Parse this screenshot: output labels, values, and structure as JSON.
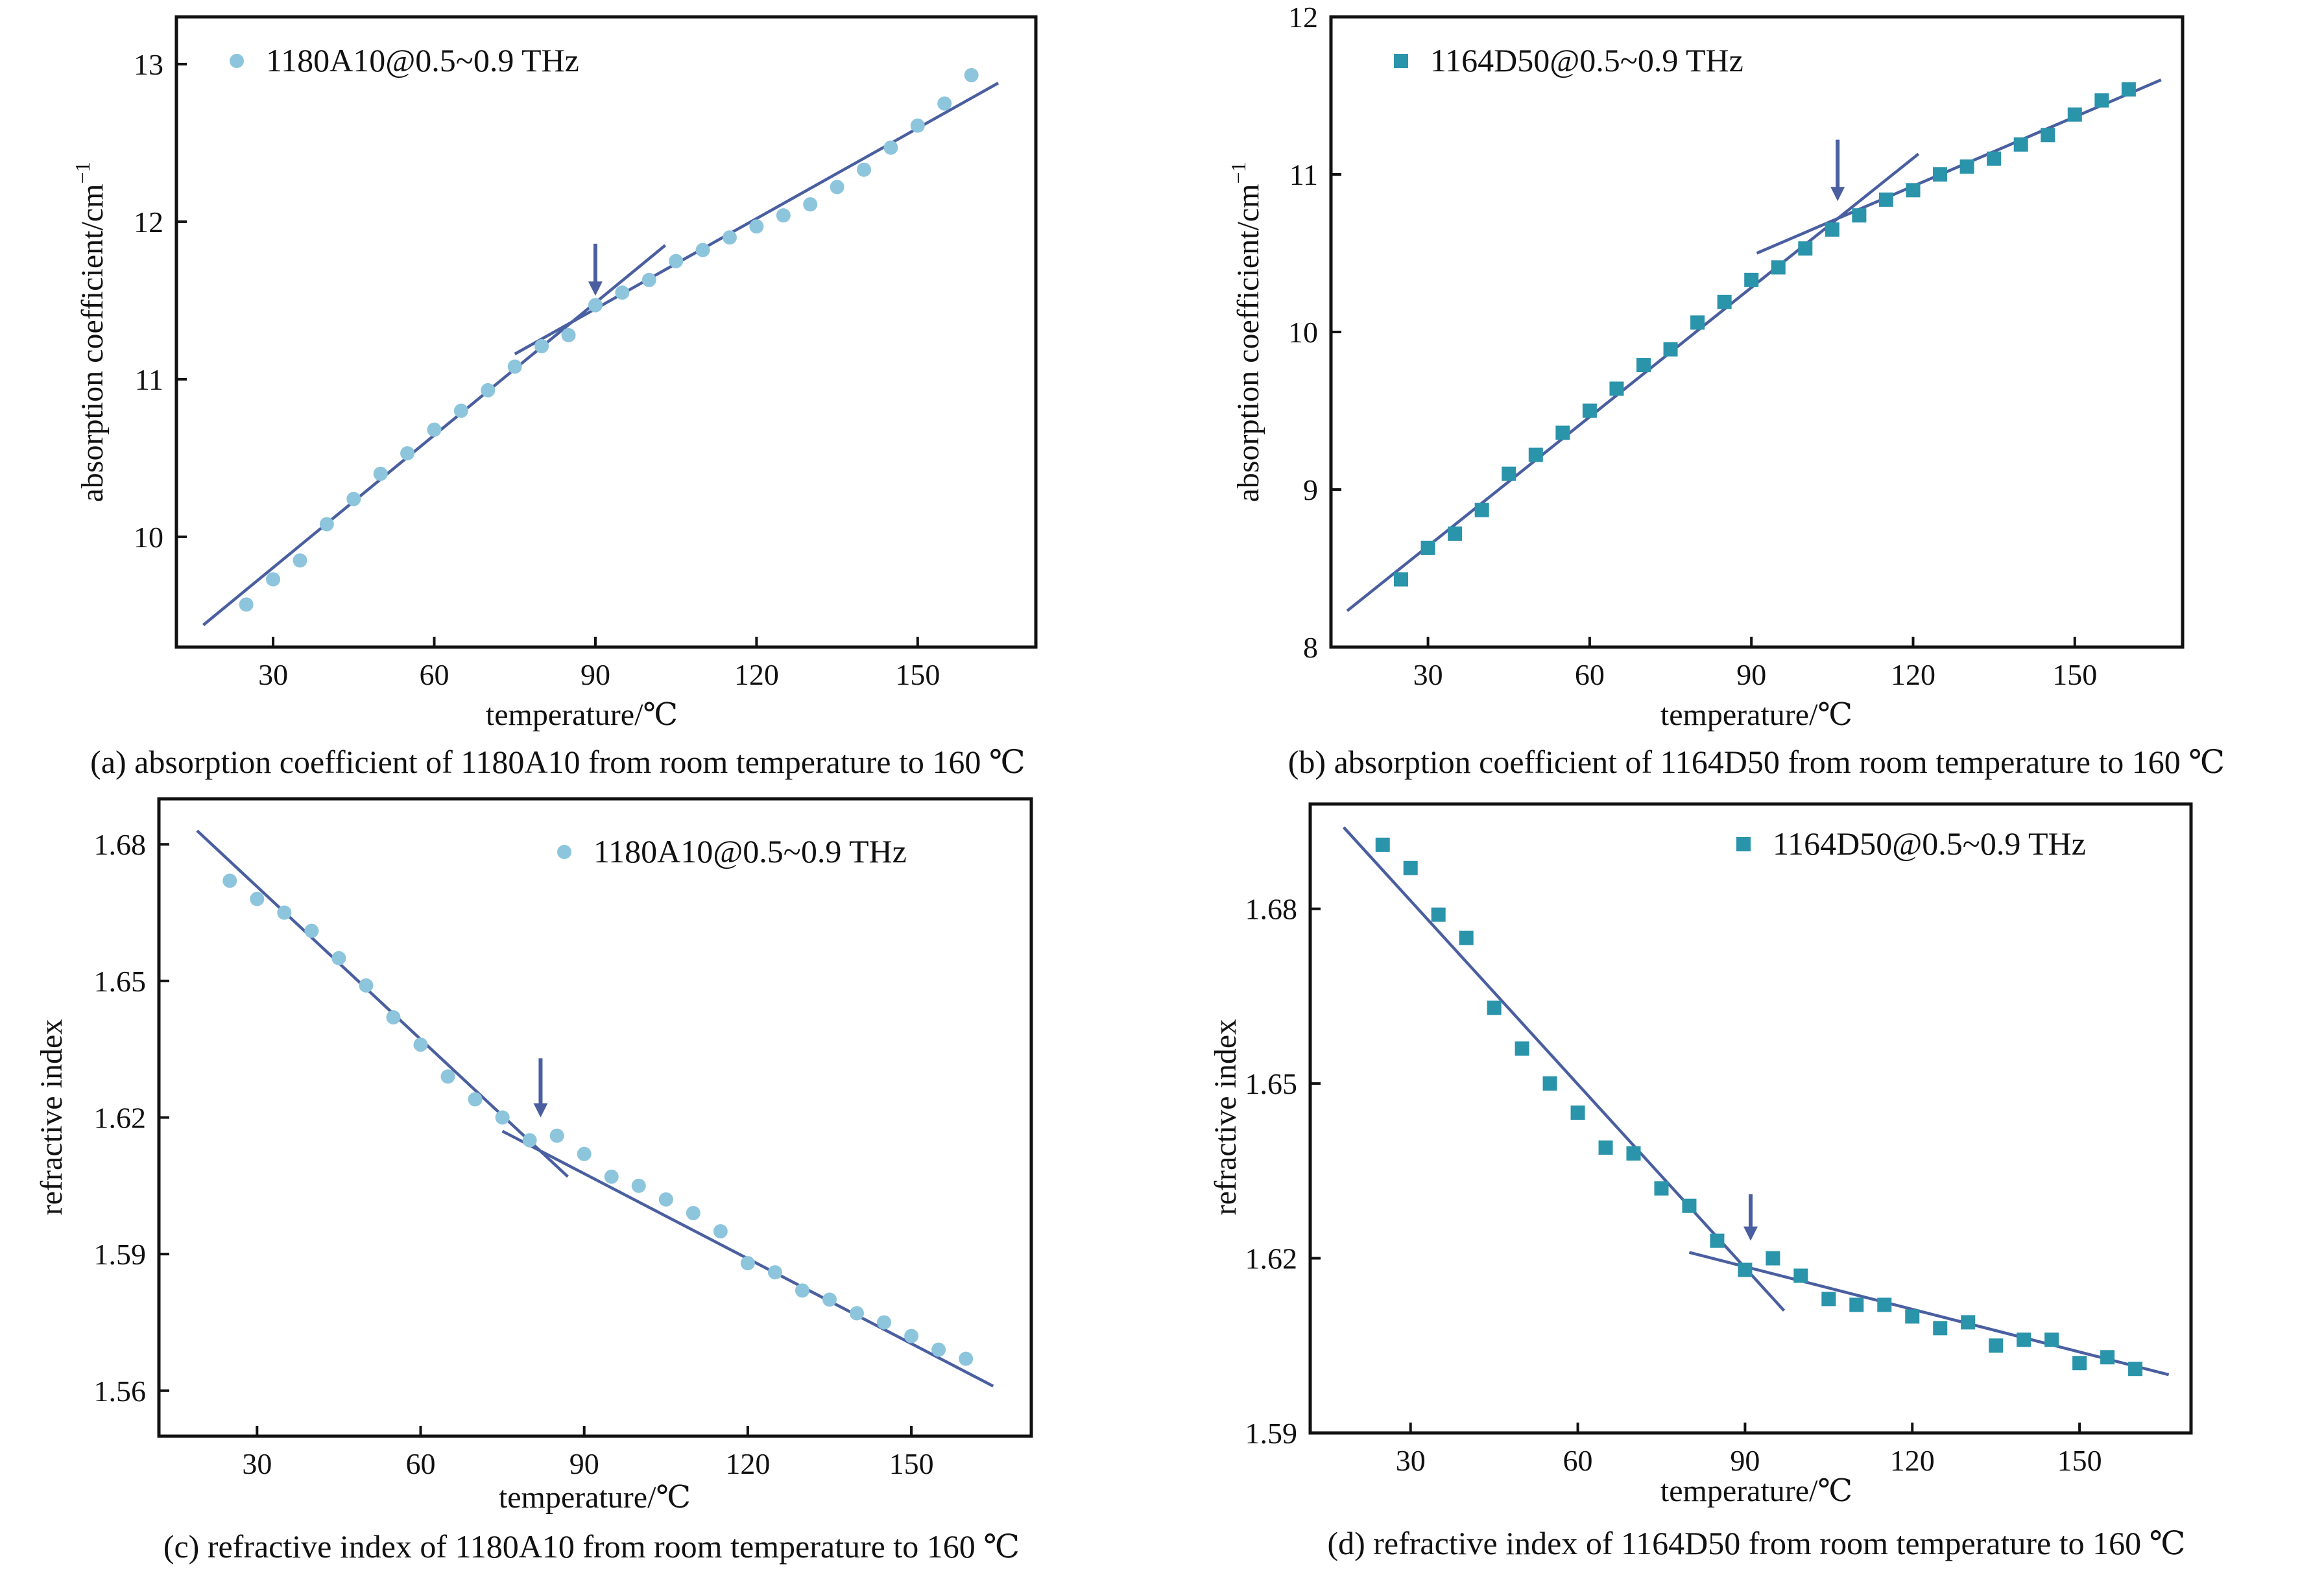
{
  "chart_data": [
    {
      "id": "a",
      "type": "scatter",
      "caption": "(a) absorption coefficient of 1180A10 from room temperature to 160 ℃",
      "xlabel": "temperature/℃",
      "ylabel": "absorption coefficient/cm",
      "ylabel_sup": "−1",
      "xlim": [
        12,
        172
      ],
      "ylim": [
        9.3,
        13.3
      ],
      "xticks": [
        30,
        60,
        90,
        120,
        150
      ],
      "yticks": [
        10,
        11,
        12,
        13
      ],
      "marker": "circle",
      "color": "#8cc5dc",
      "legend": {
        "label": "1180A10@0.5~0.9 THz",
        "placement": "top-left"
      },
      "series": [
        {
          "x": [
            25,
            30,
            35,
            40,
            45,
            50,
            55,
            60,
            65,
            70,
            75,
            80,
            85,
            90,
            95,
            100,
            105,
            110,
            115,
            120,
            125,
            130,
            135,
            140,
            145,
            150,
            155,
            160
          ],
          "y": [
            9.57,
            9.73,
            9.85,
            10.08,
            10.24,
            10.4,
            10.53,
            10.68,
            10.8,
            10.93,
            11.08,
            11.21,
            11.28,
            11.47,
            11.55,
            11.63,
            11.75,
            11.82,
            11.9,
            11.97,
            12.04,
            12.11,
            12.22,
            12.33,
            12.47,
            12.61,
            12.75,
            12.93
          ]
        }
      ],
      "fit_lines": [
        {
          "x": [
            17,
            103
          ],
          "y": [
            9.44,
            11.85
          ]
        },
        {
          "x": [
            75,
            165
          ],
          "y": [
            11.16,
            12.88
          ]
        }
      ],
      "arrow": {
        "x": 90,
        "y_top": 11.86,
        "y_tip": 11.53
      }
    },
    {
      "id": "b",
      "type": "scatter",
      "caption": "(b) absorption coefficient of 1164D50 from room temperature to 160 ℃",
      "xlabel": "temperature/℃",
      "ylabel": "absorption coefficient/cm",
      "ylabel_sup": "−1",
      "xlim": [
        12,
        170
      ],
      "ylim": [
        8,
        12
      ],
      "xticks": [
        30,
        60,
        90,
        120,
        150
      ],
      "yticks": [
        8,
        9,
        10,
        11,
        12
      ],
      "marker": "square",
      "color": "#2a94ab",
      "legend": {
        "label": "1164D50@0.5~0.9 THz",
        "placement": "top-left"
      },
      "series": [
        {
          "x": [
            25,
            30,
            35,
            40,
            45,
            50,
            55,
            60,
            65,
            70,
            75,
            80,
            85,
            90,
            95,
            100,
            105,
            110,
            115,
            120,
            125,
            130,
            135,
            140,
            145,
            150,
            155,
            160
          ],
          "y": [
            8.43,
            8.63,
            8.72,
            8.87,
            9.1,
            9.22,
            9.36,
            9.5,
            9.64,
            9.79,
            9.89,
            10.06,
            10.19,
            10.33,
            10.41,
            10.53,
            10.65,
            10.74,
            10.84,
            10.9,
            11.0,
            11.05,
            11.1,
            11.19,
            11.25,
            11.38,
            11.47,
            11.54
          ]
        }
      ],
      "fit_lines": [
        {
          "x": [
            15,
            121
          ],
          "y": [
            8.23,
            11.13
          ]
        },
        {
          "x": [
            91,
            166
          ],
          "y": [
            10.5,
            11.6
          ]
        }
      ],
      "arrow": {
        "x": 106,
        "y_top": 11.22,
        "y_tip": 10.83
      }
    },
    {
      "id": "c",
      "type": "scatter",
      "caption": "(c) refractive index of 1180A10 from room temperature to 160 ℃",
      "xlabel": "temperature/℃",
      "ylabel": "refractive index",
      "xlim": [
        12,
        172
      ],
      "ylim": [
        1.55,
        1.69
      ],
      "xticks": [
        30,
        60,
        90,
        120,
        150
      ],
      "yticks": [
        1.56,
        1.59,
        1.62,
        1.65,
        1.68
      ],
      "ytick_labels": [
        "1.56",
        "1.59",
        "1.62",
        "1.65",
        "1.68"
      ],
      "marker": "circle",
      "color": "#8cc5dc",
      "legend": {
        "label": "1180A10@0.5~0.9 THz",
        "placement": "top-right"
      },
      "series": [
        {
          "x": [
            25,
            30,
            35,
            40,
            45,
            50,
            55,
            60,
            65,
            70,
            75,
            80,
            85,
            90,
            95,
            100,
            105,
            110,
            115,
            120,
            125,
            130,
            135,
            140,
            145,
            150,
            155,
            160
          ],
          "y": [
            1.672,
            1.668,
            1.665,
            1.661,
            1.655,
            1.649,
            1.642,
            1.636,
            1.629,
            1.624,
            1.62,
            1.615,
            1.616,
            1.612,
            1.607,
            1.605,
            1.602,
            1.599,
            1.595,
            1.588,
            1.586,
            1.582,
            1.58,
            1.577,
            1.575,
            1.572,
            1.569,
            1.567
          ]
        }
      ],
      "fit_lines": [
        {
          "x": [
            19,
            87
          ],
          "y": [
            1.683,
            1.607
          ]
        },
        {
          "x": [
            75,
            165
          ],
          "y": [
            1.617,
            1.561
          ]
        }
      ],
      "arrow": {
        "x": 82,
        "y_top": 1.633,
        "y_tip": 1.62
      }
    },
    {
      "id": "d",
      "type": "scatter",
      "caption": "(d) refractive index of 1164D50 from room temperature to 160 ℃",
      "xlabel": "temperature/℃",
      "ylabel": "refractive index",
      "xlim": [
        12,
        170
      ],
      "ylim": [
        1.59,
        1.698
      ],
      "xticks": [
        30,
        60,
        90,
        120,
        150
      ],
      "yticks": [
        1.59,
        1.62,
        1.65,
        1.68
      ],
      "ytick_labels": [
        "1.59",
        "1.62",
        "1.65",
        "1.68"
      ],
      "marker": "square",
      "color": "#2a94ab",
      "legend": {
        "label": "1164D50@0.5~0.9 THz",
        "placement": "top-right"
      },
      "series": [
        {
          "x": [
            25,
            30,
            35,
            40,
            45,
            50,
            55,
            60,
            65,
            70,
            75,
            80,
            85,
            90,
            95,
            100,
            105,
            110,
            115,
            120,
            125,
            130,
            135,
            140,
            145,
            150,
            155,
            160
          ],
          "y": [
            1.691,
            1.687,
            1.679,
            1.675,
            1.663,
            1.656,
            1.65,
            1.645,
            1.639,
            1.638,
            1.632,
            1.629,
            1.623,
            1.618,
            1.62,
            1.617,
            1.613,
            1.612,
            1.612,
            1.61,
            1.608,
            1.609,
            1.605,
            1.606,
            1.606,
            1.602,
            1.603,
            1.601
          ]
        }
      ],
      "fit_lines": [
        {
          "x": [
            18,
            97
          ],
          "y": [
            1.694,
            1.611
          ]
        },
        {
          "x": [
            80,
            166
          ],
          "y": [
            1.621,
            1.6
          ]
        }
      ],
      "arrow": {
        "x": 91,
        "y_top": 1.631,
        "y_tip": 1.623
      }
    }
  ]
}
